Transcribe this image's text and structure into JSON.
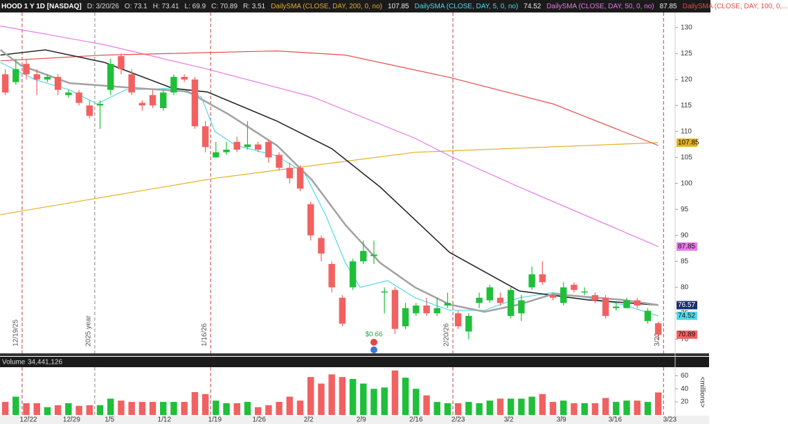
{
  "chart_data": {
    "type": "candlestick",
    "header": [
      "HOOD 1 Y 1D [NASDAQ]",
      "D: 3/20/26",
      "O: 73.1",
      "H: 73.41",
      "L: 69.9",
      "C: 70.89",
      "R: 3.51"
    ],
    "xlim": [
      -0.5,
      63.6
    ],
    "ylim": [
      67.3,
      132.9
    ],
    "yticks": [
      70,
      75,
      80,
      85,
      90,
      95,
      100,
      105,
      110,
      115,
      120,
      125,
      130
    ],
    "xticks": [
      {
        "value": 2.2,
        "label": "12/22"
      },
      {
        "value": 6.3,
        "label": "12/29"
      },
      {
        "value": 9.9,
        "label": "1/5"
      },
      {
        "value": 15.1,
        "label": "1/12"
      },
      {
        "value": 19.9,
        "label": "1/19"
      },
      {
        "value": 24.1,
        "label": "1/26"
      },
      {
        "value": 28.8,
        "label": "2/2"
      },
      {
        "value": 33.8,
        "label": "2/9"
      },
      {
        "value": 39.0,
        "label": "2/16"
      },
      {
        "value": 43.0,
        "label": "2/23"
      },
      {
        "value": 47.8,
        "label": "3/2"
      },
      {
        "value": 52.8,
        "label": "3/9"
      },
      {
        "value": 57.9,
        "label": "3/16"
      },
      {
        "value": 63.1,
        "label": "3/23"
      }
    ],
    "up_color": "#1fbf3a",
    "down_color": "#f26161",
    "open": [
      121,
      119.5,
      123,
      121,
      120,
      120.5,
      117,
      117.5,
      115,
      115,
      118,
      124.5,
      121,
      115.5,
      117,
      114.5,
      117.5,
      120.5,
      120,
      111,
      105,
      106,
      108,
      107,
      107.5,
      108,
      105.5,
      103,
      103,
      96,
      89.5,
      84.5,
      78,
      80,
      85,
      86,
      79,
      79.5,
      72.5,
      75,
      76.5,
      75,
      76.5,
      75,
      71.5,
      77,
      77.5,
      78,
      74.5,
      75,
      80,
      82.5,
      78.5,
      77,
      80.5,
      79,
      78.5,
      78,
      76,
      76,
      77.5,
      73.5,
      73.1
    ],
    "high": [
      122,
      124,
      124,
      122,
      121,
      121,
      118,
      118,
      116,
      116,
      124,
      125,
      122,
      116,
      118,
      118,
      121,
      121,
      120.5,
      112,
      108,
      108,
      109,
      112,
      108,
      108.5,
      106,
      104,
      103.5,
      96.5,
      90,
      85,
      78.5,
      85.5,
      89,
      89,
      80,
      80,
      77,
      77,
      78,
      78,
      79,
      75.5,
      75,
      79,
      80.5,
      79,
      80,
      78.5,
      84,
      85,
      79,
      81,
      81,
      80,
      79,
      78.5,
      77,
      78,
      78,
      76,
      73.41
    ],
    "low": [
      117,
      119,
      120,
      117,
      119.5,
      117,
      116.5,
      115,
      112.5,
      110.5,
      117,
      121,
      117,
      114,
      114.5,
      114,
      117,
      119.5,
      110.5,
      106,
      105,
      105.5,
      106,
      106.5,
      106,
      104,
      102.5,
      100,
      98.5,
      89,
      85,
      79,
      72.5,
      79.5,
      84.5,
      84.5,
      75,
      71,
      72,
      74.5,
      74.5,
      74.5,
      76,
      72,
      70,
      76,
      77,
      76.5,
      74,
      73.5,
      79.5,
      80.5,
      77.5,
      76.5,
      79,
      78.5,
      77,
      74,
      75.5,
      76,
      76,
      73,
      69.9
    ],
    "close": [
      117.5,
      122,
      121,
      120,
      120.5,
      118,
      117.5,
      115.5,
      113,
      115.3,
      123,
      122,
      117.5,
      115,
      115,
      117.5,
      120.5,
      120,
      111,
      107,
      106,
      106.5,
      106.5,
      107.5,
      106.5,
      105,
      103,
      101,
      99,
      90,
      86.5,
      80,
      73,
      85,
      87,
      86.3,
      79.2,
      72,
      76,
      76.5,
      75,
      76,
      77,
      72.5,
      74.5,
      78,
      80,
      77,
      79.5,
      77.5,
      82.5,
      81,
      78,
      80,
      79.5,
      79.2,
      77.5,
      74.5,
      76.3,
      77.5,
      76.5,
      75.5,
      70.89
    ],
    "series": [
      {
        "name": "DailySMA (CLOSE, DAY, 200, 0, no)",
        "value_label": "107.85",
        "color": "#e2b022",
        "width": 1.2,
        "x": [
          -0.46,
          19.9,
          38.9,
          62
        ],
        "values": [
          94,
          101,
          106,
          107.85
        ]
      },
      {
        "name": "DailySMA (CLOSE, DAY, 5, 0, no)",
        "value_label": "74.52",
        "color": "#52d8ea",
        "width": 1.2,
        "x": [
          -0.46,
          2.8,
          6.1,
          8.7,
          11.4,
          15.9,
          18.6,
          19.9,
          21.9,
          25.8,
          28.4,
          30.4,
          32.3,
          33.7,
          36.3,
          38.9,
          42.2,
          45.5,
          48.8,
          52.0,
          55.3,
          58.6,
          62
        ],
        "values": [
          123.3,
          120,
          118,
          115.3,
          118,
          118.3,
          116.7,
          110,
          107.3,
          105.3,
          102,
          94,
          84.7,
          80,
          81.3,
          78,
          75.6,
          75.6,
          78,
          79,
          78,
          76.7,
          74.52
        ]
      },
      {
        "name": "DailySMA (CLOSE, DAY, 50, 0, no)",
        "value_label": "87.85",
        "color": "#e878e8",
        "width": 1.2,
        "x": [
          -0.46,
          9.4,
          19.2,
          29.1,
          38.9,
          42.2,
          48.8,
          62
        ],
        "values": [
          130.3,
          126.7,
          122,
          116.7,
          108.7,
          105.3,
          99.3,
          87.85
        ]
      },
      {
        "name": "DailySMA (CLOSE, DAY, 100, 0,...",
        "color": "#e84a4a",
        "width": 1.2,
        "x": [
          -0.46,
          9.4,
          25.8,
          32.3,
          42.2,
          52.0,
          62
        ],
        "values": [
          123.6,
          124.7,
          125.5,
          124.7,
          120.4,
          115.3,
          107.3
        ]
      },
      {
        "value_label": "76.57",
        "color": "#262626",
        "tag_color": "#1c2f6e",
        "width": 1.6,
        "x": [
          -0.46,
          3.8,
          9.4,
          15.9,
          19.2,
          25.8,
          31.0,
          35.6,
          42.2,
          48.8,
          55.3,
          62
        ],
        "values": [
          124.7,
          125.7,
          123.3,
          118.3,
          117.6,
          112,
          106.7,
          99.3,
          86.7,
          79.3,
          77.6,
          76.57
        ]
      },
      {
        "color": "#a3a3a3",
        "width": 2.6,
        "x": [
          -0.46,
          1.5,
          6.1,
          12.7,
          17.3,
          21.2,
          25.8,
          29.1,
          32.3,
          35.6,
          38.9,
          42.2,
          45.5,
          48.8,
          52.0,
          58.6,
          62
        ],
        "values": [
          125.7,
          122.7,
          119.3,
          118.3,
          117.7,
          113.3,
          107.3,
          100.7,
          92,
          84.7,
          80,
          76.7,
          75.3,
          76.7,
          78.7,
          77.6,
          76.6
        ]
      }
    ],
    "events": [
      {
        "x": 1.6,
        "label": "12/19/25",
        "color": "#c04040"
      },
      {
        "x": 8.5,
        "label": "2025 year",
        "color": "#888888"
      },
      {
        "x": 19.5,
        "label": "1/16/26",
        "color": "#c04040"
      },
      {
        "x": 42.5,
        "label": "2/20/26",
        "color": "#c04040"
      },
      {
        "x": 62.5,
        "label": "3/20",
        "color": "#c04040"
      }
    ],
    "dividend": {
      "x": 35,
      "label": "$0.66"
    },
    "volume_title": "Volume",
    "volume_label": "34,441,126",
    "volume_unit": "<millions>",
    "volume_ylim": [
      0,
      73
    ],
    "volume_yticks": [
      20,
      40,
      60
    ],
    "volume": [
      20,
      28,
      18,
      18,
      12,
      15,
      18,
      14,
      15,
      15,
      25,
      22,
      20,
      20,
      20,
      20,
      20,
      20,
      35,
      32,
      22,
      18,
      18,
      20,
      12,
      15,
      20,
      28,
      22,
      58,
      48,
      62,
      58,
      55,
      48,
      40,
      42,
      68,
      57,
      40,
      30,
      20,
      18,
      18,
      20,
      18,
      22,
      25,
      25,
      25,
      28,
      32,
      20,
      22,
      18,
      18,
      18,
      26,
      20,
      22,
      22,
      20,
      34.44
    ]
  }
}
